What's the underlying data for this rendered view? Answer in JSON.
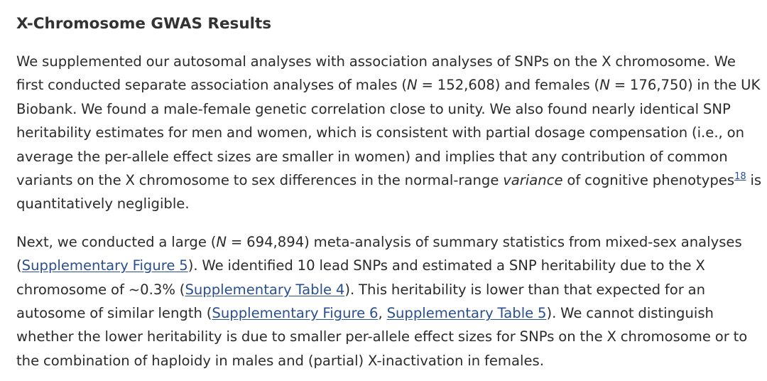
{
  "section": {
    "title": "X-Chromosome GWAS Results"
  },
  "paragraph1": {
    "l1": "We supplemented our autosomal analyses with association analyses of SNPs on the X chromosome. We",
    "l2_a": "first conducted separate association analyses of males (",
    "l2_n1": "N",
    "l2_b": " = 152,608) and females (",
    "l2_n2": "N",
    "l2_c": " = 176,750) in the UK",
    "l3": "Biobank. We found a male-female genetic correlation close to unity. We also found nearly identical SNP",
    "l4": "heritability estimates for men and women, which is consistent with partial dosage compensation (i.e., on",
    "l5": "average the per-allele effect sizes are smaller in women) and implies that any contribution of common",
    "l6_a": "variants on the X chromosome to sex differences in the normal-range ",
    "l6_em": "variance",
    "l6_b": " of cognitive phenotypes",
    "l6_ref": "18",
    "l6_c": " is",
    "l7": "quantitatively negligible."
  },
  "paragraph2": {
    "l1_a": "Next, we conducted a large (",
    "l1_n": "N",
    "l1_b": " = 694,894) meta-analysis of summary statistics from mixed-sex analyses",
    "l2_a": "(",
    "l2_link": "Supplementary Figure 5",
    "l2_b": "). We identified 10 lead SNPs and estimated a SNP heritability due to the X",
    "l3_a": "chromosome of ~0.3% (",
    "l3_link": "Supplementary Table 4",
    "l3_b": "). This heritability is lower than that expected for an",
    "l4_a": "autosome of similar length (",
    "l4_link1": "Supplementary Figure 6",
    "l4_sep": ", ",
    "l4_link2": "Supplementary Table 5",
    "l4_b": "). We cannot distinguish",
    "l5": "whether the lower heritability is due to smaller per-allele effect sizes for SNPs on the X chromosome or to",
    "l6": "the combination of haploidy in males and (partial) X-inactivation in females."
  }
}
